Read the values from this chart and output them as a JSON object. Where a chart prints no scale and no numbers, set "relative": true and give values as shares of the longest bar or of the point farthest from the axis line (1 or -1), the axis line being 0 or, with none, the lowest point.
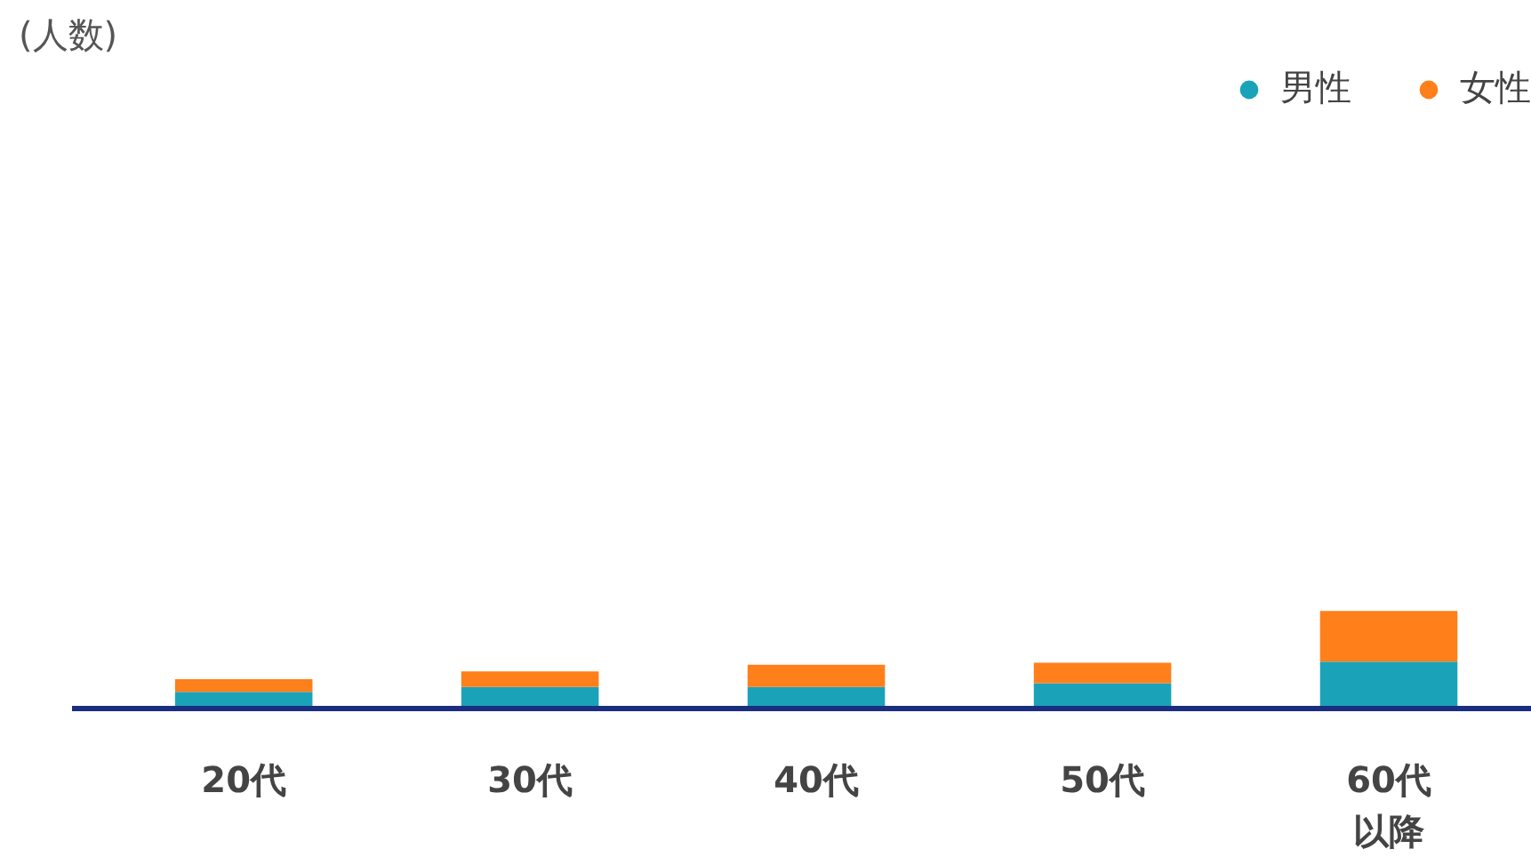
{
  "chart_data": {
    "type": "bar",
    "stacked": true,
    "relative": true,
    "annotations": [
      "(人数)"
    ],
    "categories": [
      "20代",
      "30代",
      "40代",
      "50代",
      "60代以降"
    ],
    "series": [
      {
        "name": "男性",
        "color": "#1aa3b8",
        "values": [
          0.17,
          0.22,
          0.22,
          0.26,
          0.48
        ]
      },
      {
        "name": "女性",
        "color": "#ff7f1a",
        "values": [
          0.13,
          0.16,
          0.23,
          0.21,
          0.52
        ]
      }
    ],
    "legend": "top right",
    "marker": "circle"
  }
}
